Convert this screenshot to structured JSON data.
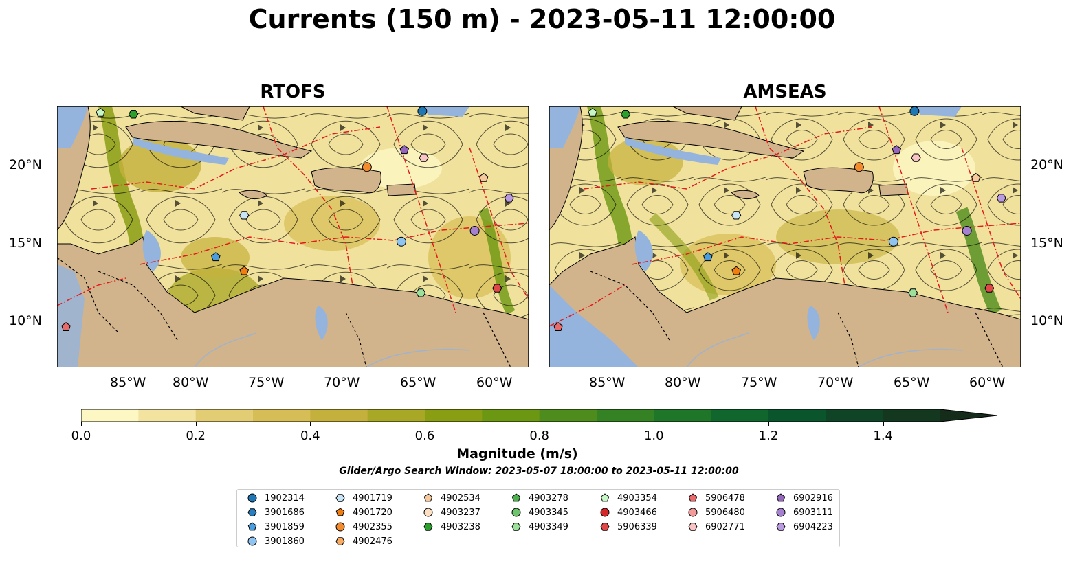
{
  "title": "Currents (150 m) - 2023-05-11 12:00:00",
  "panels": [
    {
      "title": "RTOFS"
    },
    {
      "title": "AMSEAS"
    }
  ],
  "latitude_labels": [
    "20°N",
    "15°N",
    "10°N"
  ],
  "longitude_labels": [
    "85°W",
    "80°W",
    "75°W",
    "70°W",
    "65°W",
    "60°W"
  ],
  "map_extent": {
    "lon_min": -89.5,
    "lon_max": -58.0,
    "lat_min": 7.0,
    "lat_max": 23.8
  },
  "colorbar": {
    "label": "Magnitude (m/s)",
    "ticks": [
      "0.0",
      "0.2",
      "0.4",
      "0.6",
      "0.8",
      "1.0",
      "1.2",
      "1.4"
    ],
    "range": [
      0.0,
      1.5
    ],
    "extend": "max",
    "colors": [
      "#fdf8c3",
      "#f2e4a0",
      "#e3cd74",
      "#d6bd55",
      "#c4b03c",
      "#a9a726",
      "#8a9e14",
      "#6b9712",
      "#4e8c1d",
      "#358225",
      "#1f7528",
      "#10662c",
      "#0a552c",
      "#0f4526",
      "#13371f",
      "#162c1b"
    ]
  },
  "search_window": "Glider/Argo Search Window: 2023-05-07 18:00:00 to 2023-05-11 12:00:00",
  "colors": {
    "ocean": "#95b4dd",
    "land": "#d1b38c",
    "boundary": "#e31a1c"
  },
  "legend": [
    {
      "id": "1902314",
      "marker": "circle",
      "color": "#1f77b4"
    },
    {
      "id": "3901686",
      "marker": "hexagon",
      "color": "#2a7fc1"
    },
    {
      "id": "3901859",
      "marker": "pentagon",
      "color": "#4a9ee0"
    },
    {
      "id": "3901860",
      "marker": "circle",
      "color": "#8ec4ef"
    },
    {
      "id": "4901719",
      "marker": "hexagon",
      "color": "#c8e5f8"
    },
    {
      "id": "4901720",
      "marker": "pentagon",
      "color": "#f07d10"
    },
    {
      "id": "4902355",
      "marker": "circle",
      "color": "#f38b2c"
    },
    {
      "id": "4902476",
      "marker": "hexagon",
      "color": "#f8ac63"
    },
    {
      "id": "4902534",
      "marker": "pentagon",
      "color": "#f8c99b"
    },
    {
      "id": "4903237",
      "marker": "circle",
      "color": "#fde0c4"
    },
    {
      "id": "4903238",
      "marker": "hexagon",
      "color": "#2ca02c"
    },
    {
      "id": "4903278",
      "marker": "pentagon",
      "color": "#4cb34c"
    },
    {
      "id": "4903345",
      "marker": "circle",
      "color": "#6dc46d"
    },
    {
      "id": "4903349",
      "marker": "hexagon",
      "color": "#9be09b"
    },
    {
      "id": "4903354",
      "marker": "pentagon",
      "color": "#c6f5c6"
    },
    {
      "id": "4903466",
      "marker": "circle",
      "color": "#d62728"
    },
    {
      "id": "5906339",
      "marker": "hexagon",
      "color": "#e04848"
    },
    {
      "id": "5906478",
      "marker": "pentagon",
      "color": "#e86a6a"
    },
    {
      "id": "5906480",
      "marker": "circle",
      "color": "#f39b9b"
    },
    {
      "id": "6902771",
      "marker": "hexagon",
      "color": "#f8c4c4"
    },
    {
      "id": "6902916",
      "marker": "pentagon",
      "color": "#9467bd"
    },
    {
      "id": "6903111",
      "marker": "circle",
      "color": "#a57fd0"
    },
    {
      "id": "6904223",
      "marker": "hexagon",
      "color": "#bb9be0"
    }
  ],
  "rtofs_floats": [
    {
      "id": "1902314",
      "lon": -65.1,
      "lat": 23.5
    },
    {
      "id": "3901686",
      "lon": -84.4,
      "lat": 23.3
    },
    {
      "id": "3901859",
      "lon": -78.9,
      "lat": 14.1
    },
    {
      "id": "3901860",
      "lon": -66.5,
      "lat": 15.1
    },
    {
      "id": "4901719",
      "lon": -77.0,
      "lat": 16.8
    },
    {
      "id": "4901720",
      "lon": -77.0,
      "lat": 13.2
    },
    {
      "id": "4902355",
      "lon": -68.8,
      "lat": 19.9
    },
    {
      "id": "4902534",
      "lon": -61.0,
      "lat": 19.2
    },
    {
      "id": "4903238",
      "lon": -84.4,
      "lat": 23.3
    },
    {
      "id": "4903349",
      "lon": -65.2,
      "lat": 11.8
    },
    {
      "id": "4903354",
      "lon": -86.6,
      "lat": 23.4
    },
    {
      "id": "5906339",
      "lon": -60.1,
      "lat": 12.1
    },
    {
      "id": "5906478",
      "lon": -88.9,
      "lat": 9.6
    },
    {
      "id": "6902771",
      "lon": -65.0,
      "lat": 20.5
    },
    {
      "id": "6902916",
      "lon": -66.3,
      "lat": 21.0
    },
    {
      "id": "6903111",
      "lon": -61.6,
      "lat": 15.8
    },
    {
      "id": "6904223",
      "lon": -59.3,
      "lat": 17.9
    }
  ],
  "amseas_floats": [
    {
      "id": "1902314",
      "lon": -65.1,
      "lat": 23.5
    },
    {
      "id": "3901686",
      "lon": -84.4,
      "lat": 23.3
    },
    {
      "id": "3901859",
      "lon": -78.9,
      "lat": 14.1
    },
    {
      "id": "3901860",
      "lon": -66.5,
      "lat": 15.1
    },
    {
      "id": "4901719",
      "lon": -77.0,
      "lat": 16.8
    },
    {
      "id": "4901720",
      "lon": -77.0,
      "lat": 13.2
    },
    {
      "id": "4902355",
      "lon": -68.8,
      "lat": 19.9
    },
    {
      "id": "4902534",
      "lon": -61.0,
      "lat": 19.2
    },
    {
      "id": "4903238",
      "lon": -84.4,
      "lat": 23.3
    },
    {
      "id": "4903349",
      "lon": -65.2,
      "lat": 11.8
    },
    {
      "id": "4903354",
      "lon": -86.6,
      "lat": 23.4
    },
    {
      "id": "5906339",
      "lon": -60.1,
      "lat": 12.1
    },
    {
      "id": "5906478",
      "lon": -88.9,
      "lat": 9.6
    },
    {
      "id": "6902771",
      "lon": -65.0,
      "lat": 20.5
    },
    {
      "id": "6902916",
      "lon": -66.3,
      "lat": 21.0
    },
    {
      "id": "6903111",
      "lon": -61.6,
      "lat": 15.8
    },
    {
      "id": "6904223",
      "lon": -59.3,
      "lat": 17.9
    }
  ]
}
